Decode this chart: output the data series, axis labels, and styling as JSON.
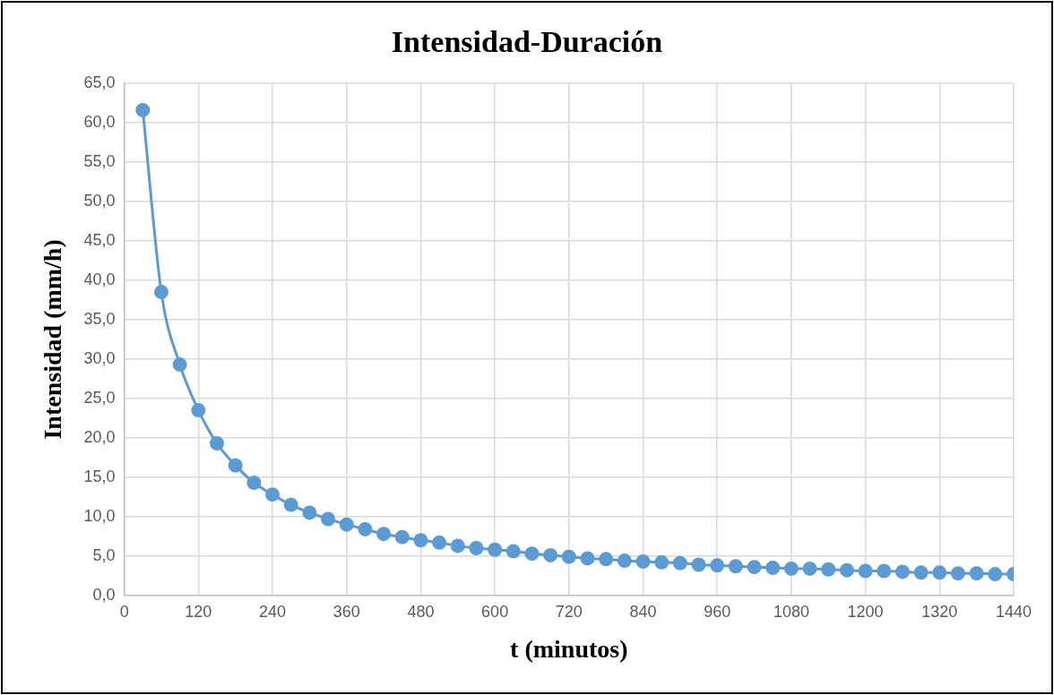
{
  "chart_data": {
    "type": "line",
    "title": "Intensidad-Duración",
    "xlabel": "t (minutos)",
    "ylabel": "Intensidad (mm/h)",
    "x": [
      30,
      60,
      90,
      120,
      150,
      180,
      210,
      240,
      270,
      300,
      330,
      360,
      390,
      420,
      450,
      480,
      510,
      540,
      570,
      600,
      630,
      660,
      690,
      720,
      750,
      780,
      810,
      840,
      870,
      900,
      930,
      960,
      990,
      1020,
      1050,
      1080,
      1110,
      1140,
      1170,
      1200,
      1230,
      1260,
      1290,
      1320,
      1350,
      1380,
      1410,
      1440
    ],
    "series": [
      {
        "color": "#5b9bd5",
        "values": [
          61.6,
          38.5,
          29.3,
          23.5,
          19.3,
          16.5,
          14.3,
          12.8,
          11.5,
          10.5,
          9.7,
          9.0,
          8.4,
          7.8,
          7.4,
          7.0,
          6.7,
          6.3,
          6.0,
          5.8,
          5.6,
          5.3,
          5.1,
          4.9,
          4.7,
          4.6,
          4.4,
          4.3,
          4.2,
          4.1,
          3.9,
          3.8,
          3.7,
          3.6,
          3.5,
          3.4,
          3.4,
          3.3,
          3.2,
          3.1,
          3.1,
          3.0,
          2.9,
          2.9,
          2.8,
          2.8,
          2.7,
          2.7
        ]
      }
    ],
    "xlim": [
      0,
      1440
    ],
    "xticks": [
      0,
      120,
      240,
      360,
      480,
      600,
      720,
      840,
      960,
      1080,
      1200,
      1320,
      1440
    ],
    "ylim": [
      0,
      65
    ],
    "yticks": [
      {
        "value": 0,
        "label": "0,0"
      },
      {
        "value": 5,
        "label": "5,0"
      },
      {
        "value": 10,
        "label": "10,0"
      },
      {
        "value": 15,
        "label": "15,0"
      },
      {
        "value": 20,
        "label": "20,0"
      },
      {
        "value": 25,
        "label": "25,0"
      },
      {
        "value": 30,
        "label": "30,0"
      },
      {
        "value": 35,
        "label": "35,0"
      },
      {
        "value": 40,
        "label": "40,0"
      },
      {
        "value": 45,
        "label": "45,0"
      },
      {
        "value": 50,
        "label": "50,0"
      },
      {
        "value": 55,
        "label": "55,0"
      },
      {
        "value": 60,
        "label": "60,0"
      },
      {
        "value": 65,
        "label": "65,0"
      }
    ],
    "grid": true,
    "marker": "circle",
    "line_style": "solid",
    "legend": false
  }
}
